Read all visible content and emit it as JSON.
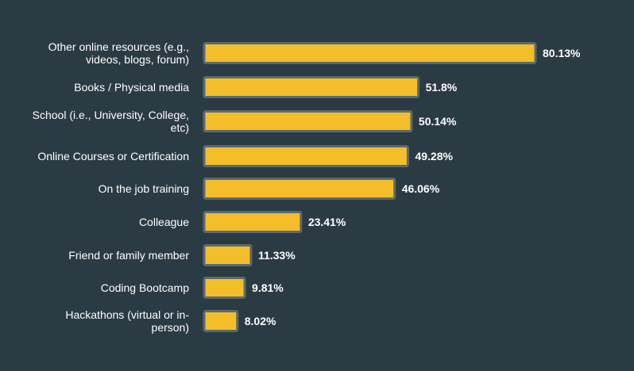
{
  "chart_data": {
    "type": "bar",
    "orientation": "horizontal",
    "categories": [
      [
        "Other online resources (e.g.,",
        "videos, blogs, forum)"
      ],
      [
        "Books / Physical media"
      ],
      [
        "School (i.e., University, College,",
        "etc)"
      ],
      [
        "Online Courses or Certification"
      ],
      [
        "On the job training"
      ],
      [
        "Colleague"
      ],
      [
        "Friend or family member"
      ],
      [
        "Coding Bootcamp"
      ],
      [
        "Hackathons (virtual or in-",
        "person)"
      ]
    ],
    "values": [
      80.13,
      51.8,
      50.14,
      49.28,
      46.06,
      23.41,
      11.33,
      9.81,
      8.02
    ],
    "value_labels": [
      "80.13%",
      "51.8%",
      "50.14%",
      "49.28%",
      "46.06%",
      "23.41%",
      "11.33%",
      "9.81%",
      "8.02%"
    ],
    "xlim": [
      0,
      80.13
    ],
    "grid": false,
    "colors": {
      "background": "#2b3b44",
      "bar_fill": "#f4be2a",
      "bar_stroke": "#5a6a70",
      "text": "#ffffff"
    }
  }
}
